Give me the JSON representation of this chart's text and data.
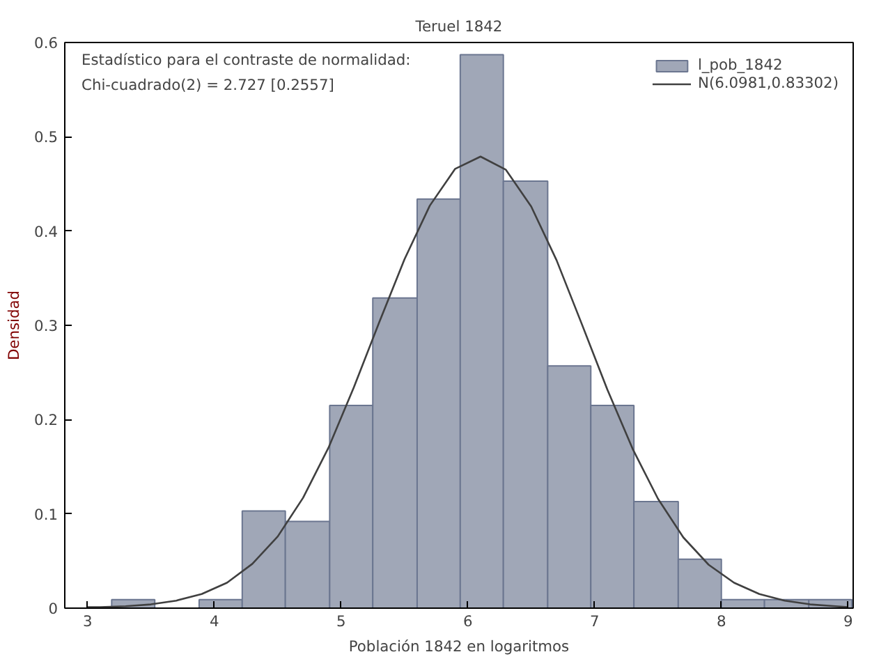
{
  "chart_data": {
    "type": "histogram",
    "title": "Teruel 1842",
    "xlabel": "Población 1842 en logaritmos",
    "ylabel": "Densidad",
    "annotations": [
      "Estadístico para el contraste de normalidad:",
      "Chi-cuadrado(2) = 2.727 [0.2557]"
    ],
    "bins": [
      3.19,
      3.53,
      3.88,
      4.22,
      4.56,
      4.91,
      5.25,
      5.6,
      5.94,
      6.28,
      6.63,
      6.97,
      7.31,
      7.66,
      8.0,
      8.34,
      8.69,
      9.03
    ],
    "series": [
      {
        "name": "l_pob_1842",
        "color": "#a0a7b7",
        "values": [
          0.009,
          null,
          0.009,
          0.103,
          0.092,
          0.215,
          0.329,
          0.434,
          0.587,
          0.453,
          0.257,
          0.215,
          0.113,
          0.052,
          0.009,
          0.009,
          0.009
        ]
      },
      {
        "name": "N(6.0981,0.83302)",
        "type": "line",
        "color": "#404040",
        "x": [
          3.0,
          3.1,
          3.3,
          3.5,
          3.7,
          3.9,
          4.1,
          4.3,
          4.5,
          4.7,
          4.9,
          5.1,
          5.3,
          5.5,
          5.7,
          5.9,
          6.1,
          6.3,
          6.5,
          6.7,
          6.9,
          7.1,
          7.3,
          7.5,
          7.7,
          7.9,
          8.1,
          8.3,
          8.5,
          8.7,
          8.9,
          9.0
        ],
        "values": [
          0.001,
          0.001,
          0.002,
          0.004,
          0.008,
          0.015,
          0.027,
          0.047,
          0.076,
          0.117,
          0.17,
          0.234,
          0.303,
          0.37,
          0.427,
          0.466,
          0.479,
          0.465,
          0.426,
          0.369,
          0.301,
          0.232,
          0.169,
          0.116,
          0.075,
          0.046,
          0.027,
          0.015,
          0.008,
          0.004,
          0.002,
          0.001
        ]
      }
    ],
    "xlim": [
      2.82,
      9.04
    ],
    "ylim": [
      0,
      0.6
    ],
    "xticks": [
      3,
      4,
      5,
      6,
      7,
      8,
      9
    ],
    "yticks": [
      0,
      0.1,
      0.2,
      0.3,
      0.4,
      0.5,
      0.6
    ],
    "grid": false,
    "legend": "top right",
    "line_style": "solid",
    "marker": "none"
  }
}
